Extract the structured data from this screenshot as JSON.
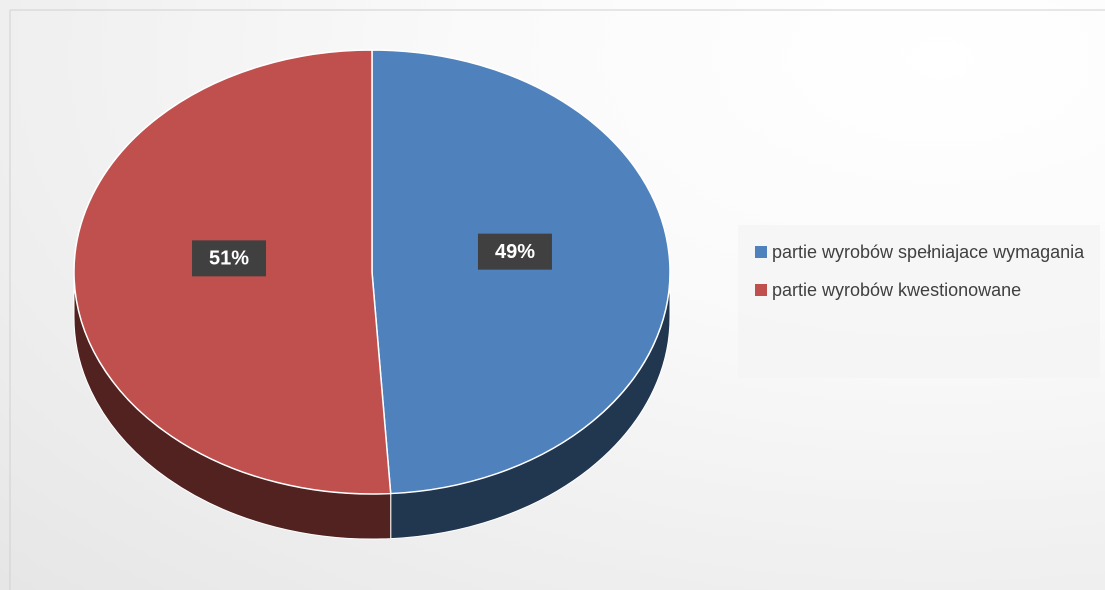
{
  "chart_data": {
    "type": "pie",
    "categories": [
      "partie wyrobów spełniajace wymagania",
      "partie wyrobów kwestionowane"
    ],
    "values": [
      49,
      51
    ],
    "value_labels": [
      "49%",
      "51%"
    ],
    "colors": [
      "#4f81bd",
      "#c0504d"
    ],
    "legend": "right"
  }
}
